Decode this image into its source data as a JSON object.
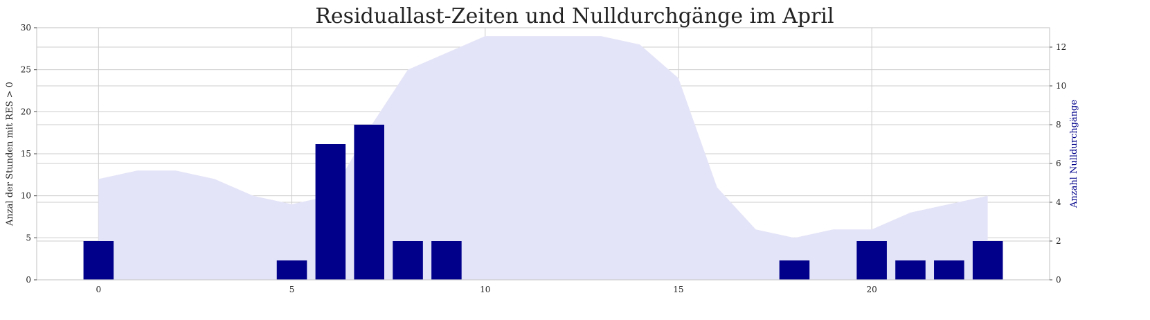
{
  "chart_data": {
    "type": "bar",
    "title": "Residuallast-Zeiten und Nulldurchgänge im April",
    "xlabel": "",
    "ylabel_left": "Anzal der Stunden mit RES > 0",
    "ylabel_right": "Anzahl Nulldurchgänge",
    "x": [
      0,
      1,
      2,
      3,
      4,
      5,
      6,
      7,
      8,
      9,
      10,
      11,
      12,
      13,
      14,
      15,
      16,
      17,
      18,
      19,
      20,
      21,
      22,
      23
    ],
    "x_ticks": [
      0,
      5,
      10,
      15,
      20
    ],
    "xlim": [
      -1.6,
      24.6
    ],
    "area_series": {
      "axis": "left",
      "color": "#e4e4f8",
      "values": [
        12,
        13,
        13,
        12,
        10,
        9,
        10,
        18,
        25,
        27,
        29,
        29,
        29,
        29,
        28,
        24,
        11,
        6,
        5,
        6,
        6,
        8,
        9,
        10
      ]
    },
    "bar_series": {
      "axis": "right",
      "color": "#00008b",
      "values": [
        2,
        0,
        0,
        0,
        0,
        1,
        7,
        8,
        2,
        2,
        0,
        0,
        0,
        0,
        0,
        0,
        0,
        0,
        1,
        0,
        2,
        1,
        1,
        2
      ]
    },
    "ylim_left": [
      0,
      30
    ],
    "yticks_left": [
      0,
      5,
      10,
      15,
      20,
      25,
      30
    ],
    "ylim_right": [
      0,
      13
    ],
    "yticks_right": [
      0,
      2,
      4,
      6,
      8,
      10,
      12
    ],
    "right_label_color": "#00008b",
    "grid": true
  }
}
